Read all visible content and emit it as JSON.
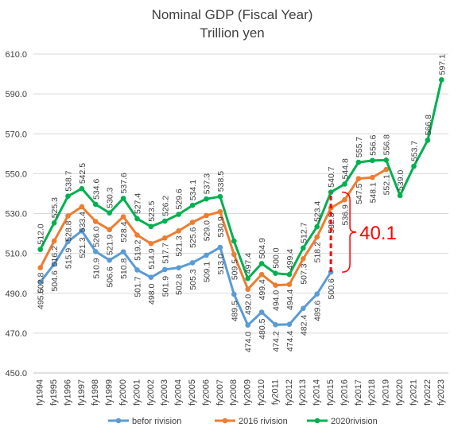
{
  "chart_data": {
    "type": "line",
    "title": "Nominal GDP (Fiscal Year)",
    "subtitle": "Trillion yen",
    "xlabel": "",
    "ylabel": "",
    "ylim": [
      450,
      610
    ],
    "yticks": [
      450,
      470,
      490,
      510,
      530,
      550,
      570,
      590,
      610
    ],
    "ytick_labels": [
      "450.0",
      "470.0",
      "490.0",
      "510.0",
      "530.0",
      "550.0",
      "570.0",
      "590.0",
      "610.0"
    ],
    "grid": true,
    "legend_position": "bottom",
    "categories": [
      "fy1994",
      "fy1995",
      "fy1996",
      "fy1997",
      "fy1998",
      "fy1999",
      "fy2000",
      "fy2001",
      "fy2002",
      "fy2003",
      "fy2004",
      "fy2005",
      "fy2006",
      "fy2007",
      "fy2008",
      "fy2009",
      "fy2010",
      "fy2011",
      "fy2012",
      "fy2013",
      "fy2014",
      "fy2015",
      "fy2016",
      "fy2017",
      "fy2018",
      "fy2019",
      "fy2020",
      "fy2021",
      "fy2022",
      "fy2023"
    ],
    "series": [
      {
        "name": "befor rivision",
        "color": "#5b9bd5",
        "values": [
          495.6,
          504.6,
          515.9,
          521.3,
          510.9,
          506.6,
          510.8,
          501.7,
          498.0,
          501.9,
          502.8,
          505.3,
          509.1,
          513.0,
          489.5,
          474.0,
          480.5,
          474.2,
          474.4,
          482.4,
          489.6,
          500.6,
          null,
          null,
          null,
          null,
          null,
          null,
          null,
          null
        ],
        "labels": [
          "495.6",
          "504.6",
          "515.9",
          "521.3",
          "510.9",
          "506.6",
          "510.8",
          "501.7",
          "498.0",
          "501.9",
          "502.8",
          "505.3",
          "509.1",
          "513.0",
          "489.5",
          "474.0",
          "480.5",
          "474.2",
          "474.4",
          "482.4",
          "489.6",
          "500.6",
          "",
          "",
          "",
          "",
          "",
          "",
          "",
          ""
        ]
      },
      {
        "name": "2016 rivision",
        "color": "#ed7d31",
        "values": [
          502.8,
          516.2,
          528.8,
          533.4,
          526.0,
          521.9,
          528.4,
          519.2,
          514.9,
          517.7,
          521.3,
          525.6,
          529.0,
          530.9,
          509.5,
          492.0,
          499.4,
          494.0,
          494.4,
          507.3,
          518.2,
          532.8,
          536.9,
          547.5,
          548.1,
          552.1,
          null,
          null,
          null,
          null
        ],
        "labels": [
          "502.8",
          "516.2",
          "528.8",
          "533.4",
          "526.0",
          "521.9",
          "528.4",
          "519.2",
          "514.9",
          "517.7",
          "521.3",
          "525.6",
          "529.0",
          "530.9",
          "509.5",
          "492.0",
          "499.4",
          "494.0",
          "494.4",
          "507.3",
          "518.2",
          "532.8",
          "536.9",
          "547.5",
          "548.1",
          "552.1",
          "",
          "",
          "",
          ""
        ]
      },
      {
        "name": "2020rivision",
        "color": "#00b050",
        "values": [
          512.0,
          525.3,
          538.7,
          542.5,
          534.6,
          530.3,
          537.6,
          527.4,
          523.5,
          526.2,
          529.6,
          534.1,
          537.3,
          538.5,
          516.2,
          497.4,
          504.9,
          500.0,
          499.4,
          512.7,
          523.4,
          540.7,
          544.8,
          555.7,
          556.6,
          556.8,
          539.0,
          553.7,
          566.8,
          597.1
        ],
        "labels": [
          "512.0",
          "525.3",
          "538.7",
          "542.5",
          "534.6",
          "530.3",
          "537.6",
          "527.4",
          "523.5",
          "526.2",
          "529.6",
          "534.1",
          "537.3",
          "538.5",
          "",
          "497.4",
          "504.9",
          "500.0",
          "499.4",
          "512.7",
          "523.4",
          "540.7",
          "544.8",
          "555.7",
          "556.6",
          "556.8",
          "539.0",
          "553.7",
          "566.8",
          "597.1"
        ]
      }
    ],
    "annotation": {
      "text": "40.1",
      "color": "#ff0000",
      "category": "fy2015",
      "from_value": 500.6,
      "to_value": 540.7
    }
  }
}
